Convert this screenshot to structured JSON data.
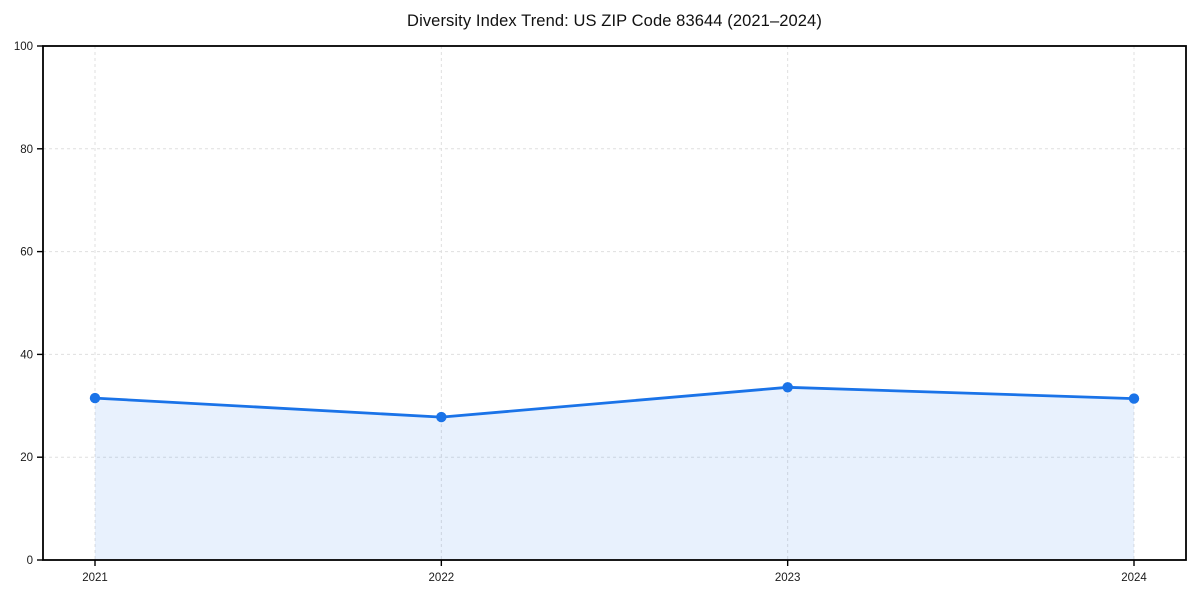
{
  "chart_data": {
    "type": "area",
    "title": "Diversity Index Trend: US ZIP Code 83644 (2021–2024)",
    "series_name": "Diversity Index",
    "categories": [
      "2021",
      "2022",
      "2023",
      "2024"
    ],
    "values": [
      31.5,
      27.8,
      33.6,
      31.4
    ],
    "xlabel": "",
    "ylabel": "",
    "ylim": [
      0,
      100
    ],
    "y_ticks": [
      0,
      20,
      40,
      60,
      80,
      100
    ],
    "grid": true,
    "grid_style": "dashed",
    "legend": false,
    "marker": "circle",
    "colors": {
      "line": "#1a73e8",
      "marker": "#1a73e8",
      "area_fill": "#1a73e8",
      "area_opacity": 0.1,
      "gridline": "#dfdfdf",
      "axis": "#000000",
      "tick_text": "#1a1a1a",
      "title_text": "#111111",
      "background": "#ffffff"
    }
  }
}
